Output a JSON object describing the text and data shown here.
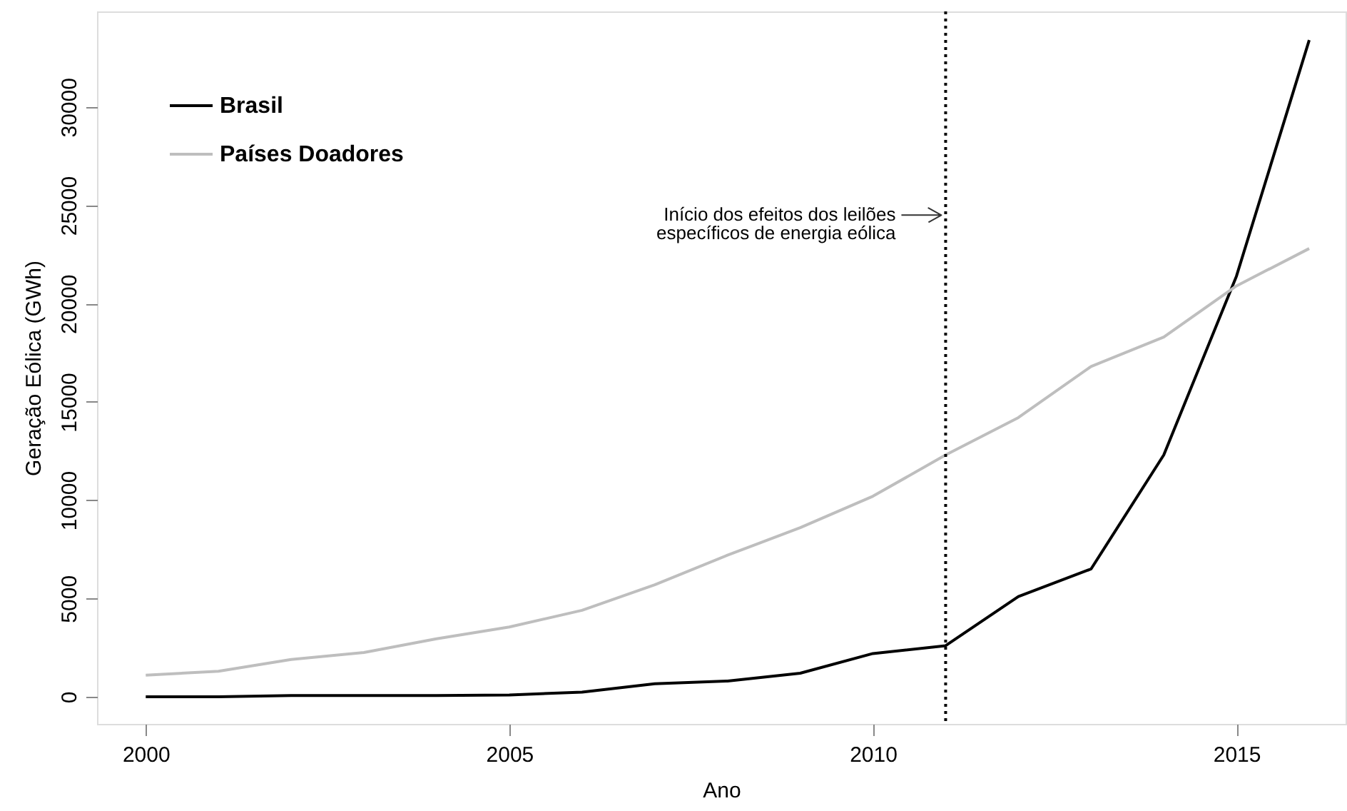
{
  "chart_data": {
    "type": "line",
    "xlabel": "Ano",
    "ylabel": "Geração Eólica (GWh)",
    "x": [
      2000,
      2001,
      2002,
      2003,
      2004,
      2005,
      2006,
      2007,
      2008,
      2009,
      2010,
      2011,
      2012,
      2013,
      2014,
      2015,
      2016
    ],
    "series": [
      {
        "name": "Brasil",
        "color": "#000000",
        "values": [
          0,
          0,
          60,
          60,
          60,
          90,
          240,
          660,
          800,
          1200,
          2200,
          2600,
          5100,
          6500,
          12300,
          21400,
          33400
        ]
      },
      {
        "name": "Países Doadores",
        "color": "#bebebe",
        "values": [
          1100,
          1300,
          1900,
          2250,
          2950,
          3550,
          4400,
          5700,
          7200,
          8600,
          10200,
          12300,
          14200,
          16800,
          18300,
          20900,
          22800
        ]
      }
    ],
    "xlim": [
      1999.33,
      2016.5
    ],
    "xticks": [
      2000,
      2005,
      2010,
      2015
    ],
    "ylim": [
      -1380,
      34860
    ],
    "yticks": [
      0,
      5000,
      10000,
      15000,
      20000,
      25000,
      30000
    ],
    "ref_lines": [
      {
        "axis": "x",
        "value": 2011,
        "line_style": "dotted",
        "color": "#000000"
      }
    ],
    "annotations": [
      {
        "text": "Início dos efeitos dos leilões\nespecíficos de energia eólica",
        "x": 2011,
        "y": 24500
      }
    ],
    "legend": "top left",
    "grid": false,
    "marker": "none",
    "line_style": "solid"
  }
}
